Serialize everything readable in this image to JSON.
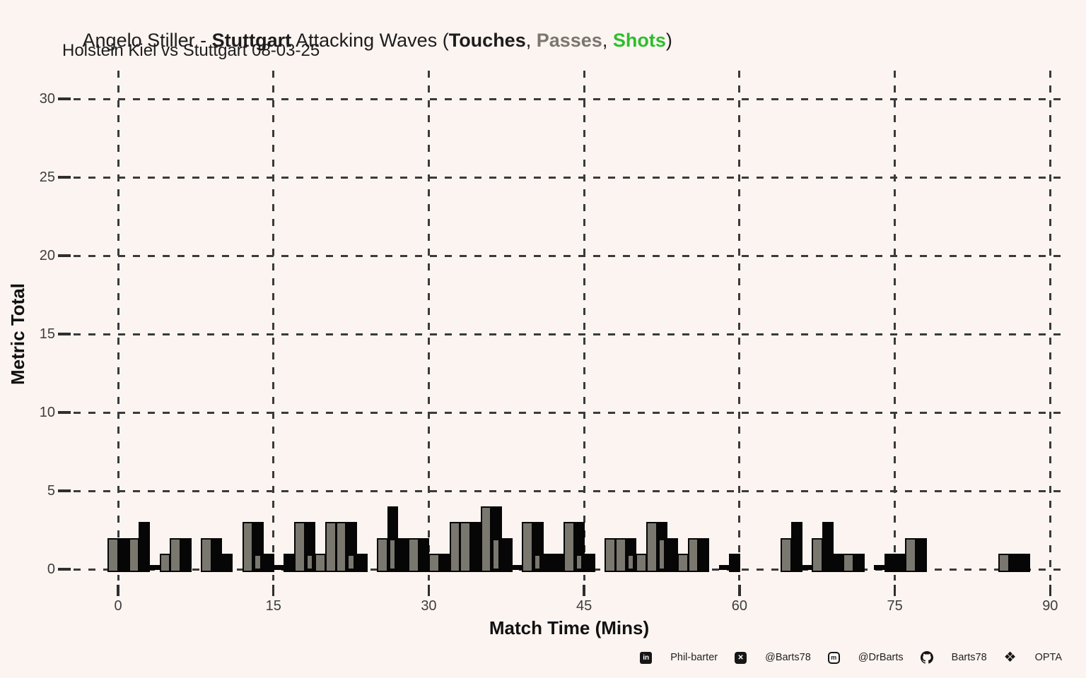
{
  "header": {
    "title_parts": [
      "Angelo Stiller - ",
      "Stuttgart",
      " Attacking Waves (",
      "Touches",
      ", ",
      "Passes",
      ", ",
      "Shots",
      ")"
    ],
    "subtitle": "Holstein Kiel vs Stuttgart 08-03-25"
  },
  "chart_data": {
    "type": "bar",
    "title": "Angelo Stiller - Stuttgart Attacking Waves (Touches, Passes, Shots)",
    "subtitle": "Holstein Kiel vs Stuttgart 08-03-25",
    "xlabel": "Match Time (Mins)",
    "ylabel": "Metric Total",
    "x_ticks": [
      0,
      15,
      30,
      45,
      60,
      75,
      90
    ],
    "y_ticks": [
      0,
      5,
      10,
      15,
      20,
      25,
      30
    ],
    "xlim": [
      -2,
      92
    ],
    "ylim": [
      0,
      31
    ],
    "grid": "dashed",
    "legend_position": "in-title",
    "series_colors": {
      "touches": "#060606",
      "passes": "#7a776f",
      "shots": "#2dbe2d"
    },
    "bars": [
      {
        "min": -1,
        "h": 2,
        "series": "passes"
      },
      {
        "min": 0,
        "h": 2,
        "series": "touches"
      },
      {
        "min": 1,
        "h": 2,
        "series": "passes"
      },
      {
        "min": 2,
        "h": 3,
        "series": "touches"
      },
      {
        "min": 4,
        "h": 1,
        "series": "passes"
      },
      {
        "min": 5,
        "h": 2,
        "series": "passes"
      },
      {
        "min": 6,
        "h": 2,
        "series": "touches"
      },
      {
        "min": 8,
        "h": 2,
        "series": "passes"
      },
      {
        "min": 9,
        "h": 2,
        "series": "touches"
      },
      {
        "min": 10,
        "h": 1,
        "series": "touches"
      },
      {
        "min": 12,
        "h": 3,
        "series": "passes"
      },
      {
        "min": 13,
        "h": 3,
        "series": "touches",
        "overlay_h": 1
      },
      {
        "min": 14,
        "h": 1,
        "series": "touches"
      },
      {
        "min": 16,
        "h": 1,
        "series": "touches"
      },
      {
        "min": 17,
        "h": 3,
        "series": "passes"
      },
      {
        "min": 18,
        "h": 3,
        "series": "touches",
        "overlay_h": 1
      },
      {
        "min": 19,
        "h": 1,
        "series": "passes"
      },
      {
        "min": 20,
        "h": 3,
        "series": "passes"
      },
      {
        "min": 21,
        "h": 3,
        "series": "passes"
      },
      {
        "min": 22,
        "h": 3,
        "series": "touches",
        "overlay_h": 1
      },
      {
        "min": 23,
        "h": 1,
        "series": "touches"
      },
      {
        "min": 25,
        "h": 2,
        "series": "passes"
      },
      {
        "min": 26,
        "h": 4,
        "series": "touches",
        "overlay_h": 2
      },
      {
        "min": 27,
        "h": 2,
        "series": "touches"
      },
      {
        "min": 28,
        "h": 2,
        "series": "passes"
      },
      {
        "min": 29,
        "h": 2,
        "series": "touches"
      },
      {
        "min": 30,
        "h": 1,
        "series": "passes"
      },
      {
        "min": 31,
        "h": 1,
        "series": "touches"
      },
      {
        "min": 32,
        "h": 3,
        "series": "passes"
      },
      {
        "min": 33,
        "h": 3,
        "series": "passes"
      },
      {
        "min": 34,
        "h": 3,
        "series": "touches"
      },
      {
        "min": 35,
        "h": 4,
        "series": "passes"
      },
      {
        "min": 36,
        "h": 4,
        "series": "touches",
        "overlay_h": 2
      },
      {
        "min": 37,
        "h": 2,
        "series": "touches"
      },
      {
        "min": 39,
        "h": 3,
        "series": "passes"
      },
      {
        "min": 40,
        "h": 3,
        "series": "touches",
        "overlay_h": 1
      },
      {
        "min": 41,
        "h": 1,
        "series": "touches"
      },
      {
        "min": 42,
        "h": 1,
        "series": "touches"
      },
      {
        "min": 43,
        "h": 3,
        "series": "passes"
      },
      {
        "min": 44,
        "h": 3,
        "series": "touches",
        "overlay_h": 1
      },
      {
        "min": 45,
        "h": 1,
        "series": "touches"
      },
      {
        "min": 47,
        "h": 2,
        "series": "passes"
      },
      {
        "min": 48,
        "h": 2,
        "series": "passes"
      },
      {
        "min": 49,
        "h": 2,
        "series": "touches",
        "overlay_h": 1
      },
      {
        "min": 50,
        "h": 1,
        "series": "passes"
      },
      {
        "min": 51,
        "h": 3,
        "series": "passes"
      },
      {
        "min": 52,
        "h": 3,
        "series": "touches",
        "overlay_h": 2
      },
      {
        "min": 53,
        "h": 2,
        "series": "touches"
      },
      {
        "min": 54,
        "h": 1,
        "series": "passes"
      },
      {
        "min": 55,
        "h": 2,
        "series": "passes"
      },
      {
        "min": 56,
        "h": 2,
        "series": "touches"
      },
      {
        "min": 59,
        "h": 1,
        "series": "touches"
      },
      {
        "min": 64,
        "h": 2,
        "series": "passes"
      },
      {
        "min": 65,
        "h": 3,
        "series": "touches"
      },
      {
        "min": 67,
        "h": 2,
        "series": "passes"
      },
      {
        "min": 68,
        "h": 3,
        "series": "touches"
      },
      {
        "min": 69,
        "h": 1,
        "series": "touches"
      },
      {
        "min": 70,
        "h": 1,
        "series": "passes"
      },
      {
        "min": 71,
        "h": 1,
        "series": "touches"
      },
      {
        "min": 74,
        "h": 1,
        "series": "touches"
      },
      {
        "min": 75,
        "h": 1,
        "series": "touches"
      },
      {
        "min": 76,
        "h": 2,
        "series": "passes"
      },
      {
        "min": 77,
        "h": 2,
        "series": "touches"
      },
      {
        "min": 85,
        "h": 1,
        "series": "passes"
      },
      {
        "min": 86,
        "h": 1,
        "series": "touches"
      },
      {
        "min": 87,
        "h": 1,
        "series": "touches"
      }
    ],
    "zero_strips": [
      3,
      15,
      38,
      58,
      66,
      73
    ]
  },
  "footer": {
    "items": [
      {
        "icon": "linkedin-icon",
        "label": "Phil-barter"
      },
      {
        "icon": "x-icon",
        "label": "@Barts78"
      },
      {
        "icon": "mastodon-icon",
        "label": "@DrBarts"
      },
      {
        "icon": "github-icon",
        "label": "Barts78"
      },
      {
        "icon": "dropbox-icon",
        "label": "OPTA"
      }
    ]
  }
}
